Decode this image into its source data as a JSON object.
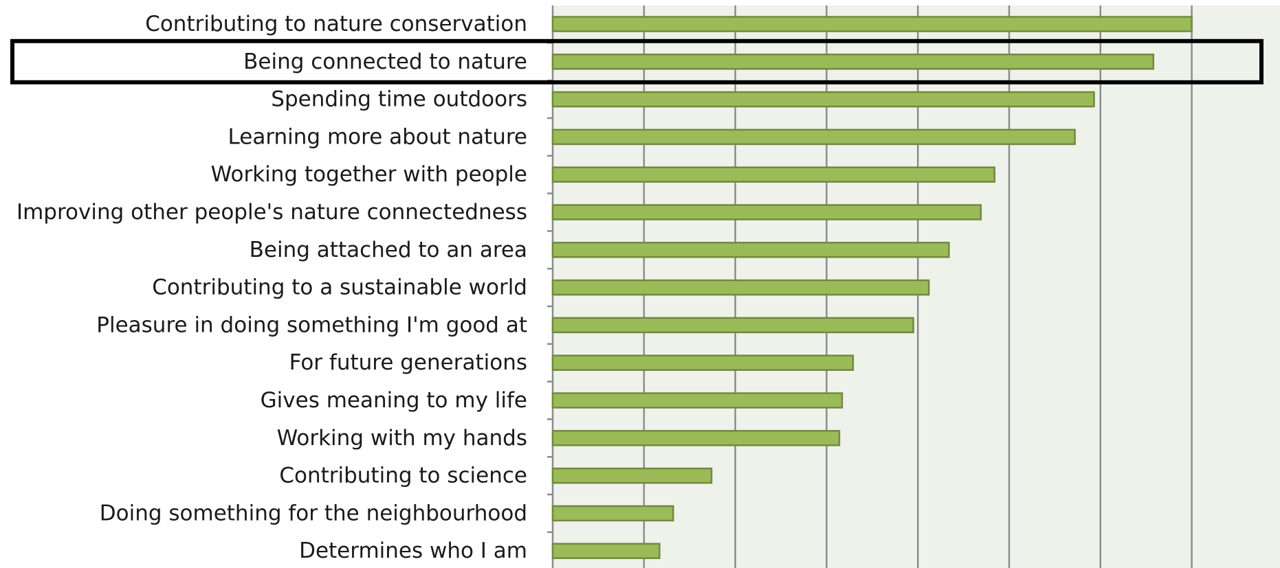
{
  "chart_data": {
    "type": "bar",
    "orientation": "horizontal",
    "title": "",
    "xlabel": "",
    "ylabel": "",
    "categories": [
      "Contributing to nature conservation",
      "Being connected to nature",
      "Spending time outdoors",
      "Learning more about nature",
      "Working together with people",
      "Improving other people's nature connectedness",
      "Being attached to an area",
      "Contributing to a sustainable world",
      "Pleasure in doing something I'm good at",
      "For future generations",
      "Gives meaning to my life",
      "Working with my hands",
      "Contributing to science",
      "Doing something for the neighbourhood",
      "Determines who I am"
    ],
    "values": [
      7.0,
      6.58,
      5.93,
      5.72,
      4.84,
      4.69,
      4.34,
      4.12,
      3.95,
      3.29,
      3.17,
      3.14,
      1.74,
      1.32,
      1.17
    ],
    "xlim": [
      0,
      7.8
    ],
    "gridlines": [
      1,
      2,
      3,
      4,
      5,
      6,
      7
    ],
    "grid": true,
    "tick_labels_shown": false,
    "highlighted_category": "Being connected to nature",
    "colors": {
      "bar_fill": "#9bbb59",
      "bar_stroke": "#71893f",
      "plot_background": "#eff2ea",
      "gridline": "#8c8c8c",
      "axis": "#8c8c8c",
      "highlight_box": "#000000"
    }
  }
}
